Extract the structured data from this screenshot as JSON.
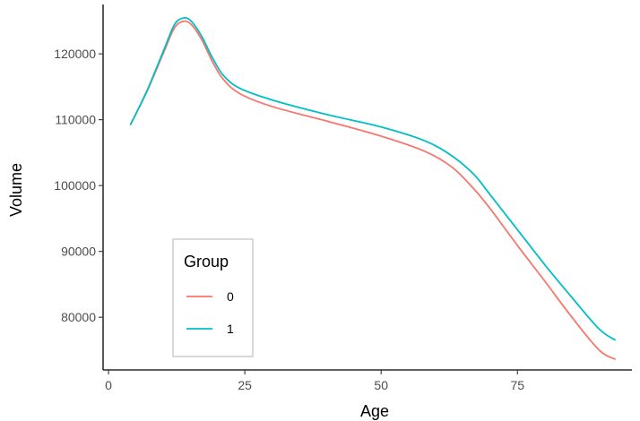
{
  "chart_data": {
    "type": "line",
    "xlabel": "Age",
    "ylabel": "Volume",
    "xlim": [
      -1,
      96
    ],
    "ylim": [
      72000,
      127500
    ],
    "xticks": [
      0,
      25,
      50,
      75
    ],
    "yticks": [
      80000,
      90000,
      100000,
      110000,
      120000
    ],
    "ytick_labels": [
      "80000",
      "90000",
      "100000",
      "110000",
      "120000"
    ],
    "grid": false,
    "legend": {
      "title": "Group",
      "position": "bottom-left (inside plot)"
    },
    "series": [
      {
        "name": "0",
        "color": "#F8766D",
        "points": [
          [
            4,
            109200
          ],
          [
            7,
            114200
          ],
          [
            10,
            120000
          ],
          [
            12,
            123800
          ],
          [
            13.5,
            124900
          ],
          [
            15,
            124600
          ],
          [
            17,
            122300
          ],
          [
            19,
            118900
          ],
          [
            21,
            116200
          ],
          [
            24,
            114000
          ],
          [
            30,
            112000
          ],
          [
            40,
            109800
          ],
          [
            50,
            107500
          ],
          [
            58,
            105200
          ],
          [
            63,
            102800
          ],
          [
            67,
            99500
          ],
          [
            70,
            96500
          ],
          [
            75,
            90900
          ],
          [
            80,
            85500
          ],
          [
            85,
            80000
          ],
          [
            90,
            75000
          ],
          [
            93,
            73600
          ]
        ]
      },
      {
        "name": "1",
        "color": "#00BFC4",
        "points": [
          [
            4,
            109200
          ],
          [
            7,
            114300
          ],
          [
            10,
            120300
          ],
          [
            12,
            124300
          ],
          [
            13.5,
            125400
          ],
          [
            15,
            125100
          ],
          [
            17,
            122800
          ],
          [
            19,
            119500
          ],
          [
            21,
            116800
          ],
          [
            24,
            114800
          ],
          [
            30,
            113000
          ],
          [
            40,
            110800
          ],
          [
            50,
            108900
          ],
          [
            58,
            106800
          ],
          [
            63,
            104500
          ],
          [
            67,
            101700
          ],
          [
            70,
            98600
          ],
          [
            75,
            93300
          ],
          [
            80,
            88000
          ],
          [
            85,
            83000
          ],
          [
            90,
            78200
          ],
          [
            93,
            76500
          ]
        ]
      }
    ]
  }
}
